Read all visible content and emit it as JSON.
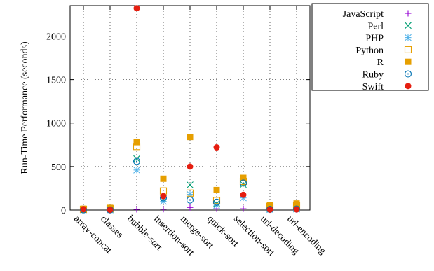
{
  "chart_data": {
    "type": "scatter",
    "ylabel": "Run-Time Performance (seconds)",
    "ylim": [
      0,
      2350
    ],
    "yticks": [
      0,
      500,
      1000,
      1500,
      2000
    ],
    "grid": "dotted",
    "legend_position": "right",
    "categories": [
      "array-concat",
      "classes",
      "bubble-sort",
      "insertion-sort",
      "merge-sort",
      "quick-sort",
      "selection-sort",
      "url-decoding",
      "url-encoding"
    ],
    "series": [
      {
        "name": "JavaScript",
        "marker": "plus",
        "color": "#9400d3",
        "values": [
          1,
          1,
          8,
          10,
          30,
          15,
          15,
          3,
          5
        ]
      },
      {
        "name": "Perl",
        "marker": "cross",
        "color": "#009e73",
        "values": [
          5,
          3,
          590,
          130,
          290,
          75,
          295,
          10,
          15
        ]
      },
      {
        "name": "PHP",
        "marker": "asterisk",
        "color": "#56b4e9",
        "values": [
          2,
          1,
          460,
          100,
          180,
          55,
          140,
          5,
          10
        ]
      },
      {
        "name": "Python",
        "marker": "open-square",
        "color": "#e69f00",
        "values": [
          8,
          15,
          730,
          220,
          195,
          110,
          330,
          40,
          55
        ]
      },
      {
        "name": "R",
        "marker": "filled-square",
        "color": "#e69f00",
        "values": [
          15,
          25,
          780,
          360,
          840,
          230,
          370,
          55,
          75
        ]
      },
      {
        "name": "Ruby",
        "marker": "open-circle",
        "color": "#0072b2",
        "values": [
          3,
          2,
          560,
          140,
          115,
          90,
          310,
          8,
          12
        ]
      },
      {
        "name": "Swift",
        "marker": "filled-circle",
        "color": "#e51e10",
        "values": [
          10,
          2,
          2320,
          160,
          500,
          720,
          175,
          5,
          8
        ]
      }
    ]
  }
}
